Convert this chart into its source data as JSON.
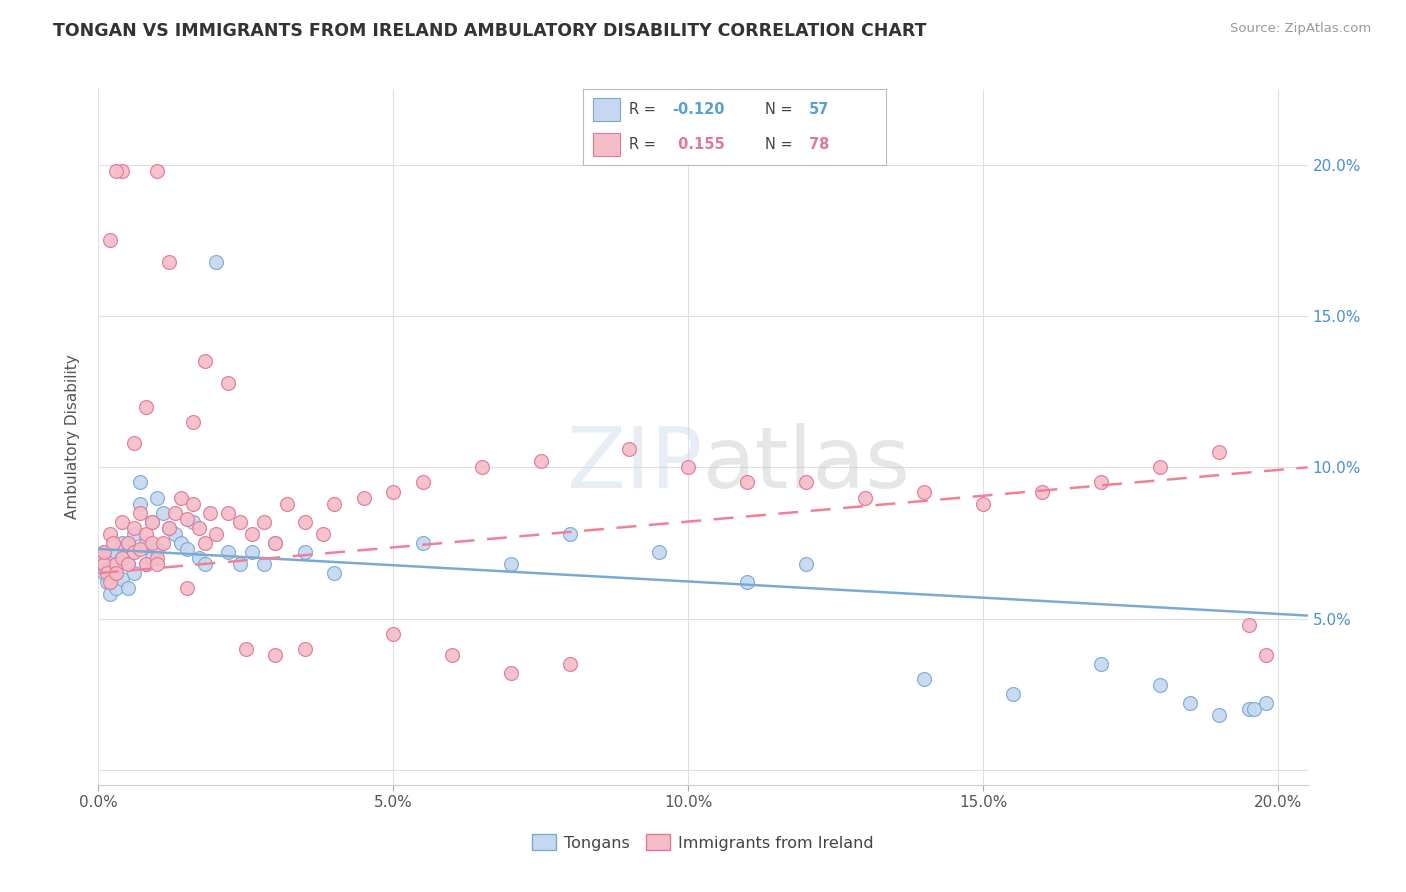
{
  "title": "TONGAN VS IMMIGRANTS FROM IRELAND AMBULATORY DISABILITY CORRELATION CHART",
  "source": "Source: ZipAtlas.com",
  "ylabel": "Ambulatory Disability",
  "xlim": [
    0.0,
    0.205
  ],
  "ylim": [
    -0.005,
    0.225
  ],
  "background_color": "#ffffff",
  "grid_color": "#e0e0e0",
  "watermark": "ZIPatlas",
  "tongans_color": "#c5d8f0",
  "tongans_edge_color": "#7aaad4",
  "ireland_color": "#f5bdc8",
  "ireland_edge_color": "#e07898",
  "tongans_line_color": "#7aaad4",
  "ireland_line_color": "#f08098",
  "tongans_R": -0.12,
  "tongans_N": 57,
  "ireland_R": 0.155,
  "ireland_N": 78,
  "tongans_x": [
    0.0005,
    0.001,
    0.001,
    0.0015,
    0.002,
    0.002,
    0.0025,
    0.003,
    0.003,
    0.003,
    0.004,
    0.004,
    0.004,
    0.005,
    0.005,
    0.005,
    0.006,
    0.006,
    0.007,
    0.007,
    0.008,
    0.008,
    0.009,
    0.009,
    0.01,
    0.01,
    0.011,
    0.012,
    0.013,
    0.014,
    0.015,
    0.016,
    0.017,
    0.018,
    0.02,
    0.022,
    0.024,
    0.026,
    0.028,
    0.03,
    0.035,
    0.04,
    0.055,
    0.07,
    0.08,
    0.095,
    0.11,
    0.12,
    0.14,
    0.155,
    0.17,
    0.18,
    0.185,
    0.19,
    0.195,
    0.196,
    0.198
  ],
  "tongans_y": [
    0.068,
    0.065,
    0.072,
    0.062,
    0.07,
    0.058,
    0.065,
    0.068,
    0.072,
    0.06,
    0.075,
    0.063,
    0.07,
    0.068,
    0.072,
    0.06,
    0.078,
    0.065,
    0.095,
    0.088,
    0.068,
    0.075,
    0.082,
    0.07,
    0.09,
    0.073,
    0.085,
    0.08,
    0.078,
    0.075,
    0.073,
    0.082,
    0.07,
    0.068,
    0.168,
    0.072,
    0.068,
    0.072,
    0.068,
    0.075,
    0.072,
    0.065,
    0.075,
    0.068,
    0.078,
    0.072,
    0.062,
    0.068,
    0.03,
    0.025,
    0.035,
    0.028,
    0.022,
    0.018,
    0.02,
    0.02,
    0.022
  ],
  "ireland_x": [
    0.0005,
    0.001,
    0.001,
    0.0015,
    0.002,
    0.002,
    0.0025,
    0.003,
    0.003,
    0.004,
    0.004,
    0.005,
    0.005,
    0.006,
    0.006,
    0.007,
    0.007,
    0.008,
    0.008,
    0.009,
    0.009,
    0.01,
    0.01,
    0.011,
    0.012,
    0.013,
    0.014,
    0.015,
    0.016,
    0.017,
    0.018,
    0.019,
    0.02,
    0.022,
    0.024,
    0.026,
    0.028,
    0.03,
    0.032,
    0.035,
    0.038,
    0.04,
    0.045,
    0.05,
    0.055,
    0.065,
    0.075,
    0.09,
    0.1,
    0.11,
    0.12,
    0.13,
    0.14,
    0.15,
    0.16,
    0.17,
    0.18,
    0.19,
    0.195,
    0.198,
    0.01,
    0.012,
    0.018,
    0.022,
    0.016,
    0.008,
    0.006,
    0.004,
    0.003,
    0.002,
    0.025,
    0.03,
    0.035,
    0.015,
    0.05,
    0.06,
    0.07,
    0.08
  ],
  "ireland_y": [
    0.07,
    0.068,
    0.072,
    0.065,
    0.078,
    0.062,
    0.075,
    0.068,
    0.065,
    0.082,
    0.07,
    0.075,
    0.068,
    0.072,
    0.08,
    0.085,
    0.073,
    0.078,
    0.068,
    0.082,
    0.075,
    0.07,
    0.068,
    0.075,
    0.08,
    0.085,
    0.09,
    0.083,
    0.088,
    0.08,
    0.075,
    0.085,
    0.078,
    0.085,
    0.082,
    0.078,
    0.082,
    0.075,
    0.088,
    0.082,
    0.078,
    0.088,
    0.09,
    0.092,
    0.095,
    0.1,
    0.102,
    0.106,
    0.1,
    0.095,
    0.095,
    0.09,
    0.092,
    0.088,
    0.092,
    0.095,
    0.1,
    0.105,
    0.048,
    0.038,
    0.198,
    0.168,
    0.135,
    0.128,
    0.115,
    0.12,
    0.108,
    0.198,
    0.198,
    0.175,
    0.04,
    0.038,
    0.04,
    0.06,
    0.045,
    0.038,
    0.032,
    0.035
  ],
  "tongans_trend_x": [
    0.0,
    0.205
  ],
  "tongans_trend_y": [
    0.073,
    0.051
  ],
  "ireland_trend_x": [
    0.0,
    0.205
  ],
  "ireland_trend_y": [
    0.065,
    0.1
  ],
  "ytick_vals_right": [
    0.0,
    0.05,
    0.1,
    0.15,
    0.2
  ],
  "ytick_labels_right": [
    "",
    "5.0%",
    "10.0%",
    "15.0%",
    "20.0%"
  ],
  "xtick_vals": [
    0.0,
    0.05,
    0.1,
    0.15,
    0.2
  ],
  "xtick_labels": [
    "0.0%",
    "5.0%",
    "10.0%",
    "15.0%",
    "20.0%"
  ],
  "legend_tongans_R": "R = -0.120",
  "legend_tongans_N": "N = 57",
  "legend_ireland_R": "R =  0.155",
  "legend_ireland_N": "N = 78",
  "bottom_legend_tongans": "Tongans",
  "bottom_legend_ireland": "Immigrants from Ireland"
}
